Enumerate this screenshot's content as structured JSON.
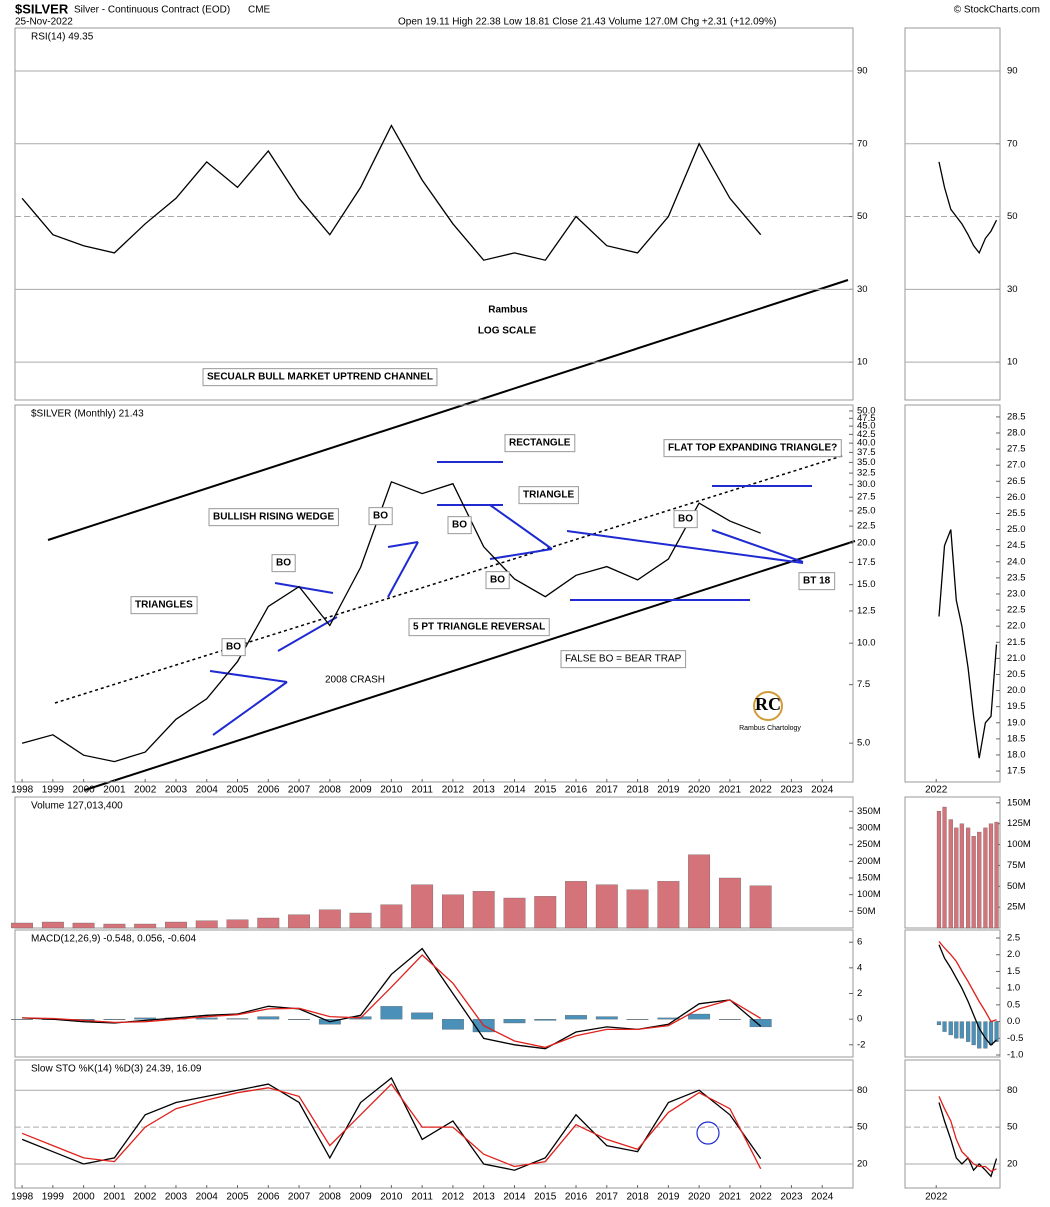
{
  "header": {
    "symbol": "$SILVER",
    "name": "Silver - Continuous Contract (EOD)",
    "exchange": "CME",
    "date": "25-Nov-2022",
    "quote": "Open 19.11 High 22.38 Low 18.81 Close 21.43 Volume 127.0M Chg +2.31 (+12.09%)",
    "credit": "© StockCharts.com"
  },
  "chart_data": [
    {
      "type": "line",
      "label": "RSI(14) 49.35",
      "x": [
        1998,
        1999,
        2000,
        2001,
        2002,
        2003,
        2004,
        2005,
        2006,
        2007,
        2008,
        2009,
        2010,
        2011,
        2012,
        2013,
        2014,
        2015,
        2016,
        2017,
        2018,
        2019,
        2020,
        2021,
        2022
      ],
      "xlim": [
        1997.77,
        2025.0
      ],
      "ylim": [
        -0.4,
        101.8
      ],
      "yticks": [
        10,
        30,
        50,
        70,
        90
      ],
      "grid": true,
      "series": [
        {
          "type": "line",
          "color": "#000000",
          "values": [
            55,
            45,
            42,
            40,
            48,
            55,
            65,
            58,
            68,
            55,
            45,
            58,
            75,
            60,
            48,
            38,
            40,
            38,
            50,
            42,
            40,
            50,
            70,
            55,
            45
          ]
        }
      ]
    },
    {
      "type": "line",
      "label": "$SILVER (Monthly) 21.43",
      "log_scale": true,
      "x": [
        1998,
        1999,
        2000,
        2001,
        2002,
        2003,
        2004,
        2005,
        2006,
        2007,
        2008,
        2009,
        2010,
        2011,
        2012,
        2013,
        2014,
        2015,
        2016,
        2017,
        2018,
        2019,
        2020,
        2021,
        2022
      ],
      "xlim": [
        1997.77,
        2025.0
      ],
      "ylim": [
        3.82,
        52.1
      ],
      "yticks": [
        {
          "value": 5,
          "label": "5.0"
        },
        7.5,
        {
          "value": 10,
          "label": "10.0"
        },
        12.5,
        {
          "value": 15,
          "label": "15.0"
        },
        17.5,
        {
          "value": 20,
          "label": "20.0"
        },
        22.5,
        {
          "value": 25,
          "label": "25.0"
        },
        27.5,
        {
          "value": 30,
          "label": "30.0"
        },
        32.5,
        {
          "value": 35,
          "label": "35.0"
        },
        37.5,
        {
          "value": 40,
          "label": "40.0"
        },
        42.5,
        {
          "value": 45,
          "label": "45.0"
        },
        47.5,
        {
          "value": 50,
          "label": "50.0"
        }
      ],
      "xticks": [
        1998,
        1999,
        2000,
        2001,
        2002,
        2003,
        2004,
        2005,
        2006,
        2007,
        2008,
        2009,
        2010,
        2011,
        2012,
        2013,
        2014,
        2015,
        2016,
        2017,
        2018,
        2019,
        2020,
        2021,
        2022,
        2023,
        2024
      ],
      "series": [
        {
          "type": "line",
          "color": "#000000",
          "values": [
            5.0,
            5.3,
            4.6,
            4.4,
            4.7,
            5.9,
            6.8,
            8.8,
            12.9,
            14.8,
            11.3,
            16.9,
            30.6,
            28.2,
            30.2,
            19.5,
            15.6,
            13.8,
            16.0,
            17.0,
            15.5,
            17.9,
            26.4,
            23.3,
            21.43
          ]
        }
      ],
      "annotations": [
        "Rambus",
        "LOG SCALE",
        "SECUALR BULL MARKET UPTREND CHANNEL",
        "BULLISH RISING WEDGE",
        "BO",
        "BO",
        "TRIANGLES",
        "BO",
        "2008 CRASH",
        "RECTANGLE",
        "TRIANGLE",
        "BO",
        "BO",
        "5 PT TRIANGLE REVERSAL",
        "FALSE BO = BEAR TRAP",
        "FLAT TOP EXPANDING TRIANGLE?",
        "BO",
        "BT 18",
        "RC",
        "Rambus Chartology"
      ]
    },
    {
      "type": "bar",
      "label": "Volume 127,013,400",
      "x": [
        1998,
        1999,
        2000,
        2001,
        2002,
        2003,
        2004,
        2005,
        2006,
        2007,
        2008,
        2009,
        2010,
        2011,
        2012,
        2013,
        2014,
        2015,
        2016,
        2017,
        2018,
        2019,
        2020,
        2021,
        2022
      ],
      "xlim": [
        1997.77,
        2025.0
      ],
      "ylim": [
        0,
        393
      ],
      "yticks": [
        {
          "value": 50,
          "label": "50M"
        },
        {
          "value": 100,
          "label": "100M"
        },
        {
          "value": 150,
          "label": "150M"
        },
        {
          "value": 200,
          "label": "200M"
        },
        {
          "value": 250,
          "label": "250M"
        },
        {
          "value": 300,
          "label": "300M"
        },
        {
          "value": 350,
          "label": "350M"
        }
      ],
      "series": [
        {
          "type": "bar",
          "color": "#d4737a",
          "values": [
            15,
            18,
            15,
            12,
            12,
            18,
            22,
            25,
            30,
            40,
            55,
            45,
            70,
            130,
            100,
            110,
            90,
            95,
            140,
            130,
            115,
            140,
            220,
            150,
            127
          ]
        }
      ]
    },
    {
      "type": "line",
      "label": "MACD(12,26,9) -0.548, 0.056, -0.604",
      "x": [
        1998,
        1999,
        2000,
        2001,
        2002,
        2003,
        2004,
        2005,
        2006,
        2007,
        2008,
        2009,
        2010,
        2011,
        2012,
        2013,
        2014,
        2015,
        2016,
        2017,
        2018,
        2019,
        2020,
        2021,
        2022
      ],
      "xlim": [
        1997.77,
        2025.0
      ],
      "ylim": [
        -2.95,
        6.95
      ],
      "yticks": [
        -2,
        0,
        2,
        4,
        6
      ],
      "series": [
        {
          "type": "bar",
          "color": "#4a90b8",
          "values": [
            0,
            -0.05,
            -0.1,
            -0.05,
            0.1,
            0.1,
            0.1,
            0.05,
            0.2,
            -0.05,
            -0.4,
            0.2,
            1.0,
            0.5,
            -0.8,
            -1.0,
            -0.3,
            -0.1,
            0.3,
            0.2,
            0,
            0.1,
            0.4,
            0,
            -0.604
          ]
        },
        {
          "type": "line",
          "color": "#000000",
          "values": [
            0.1,
            0,
            -0.2,
            -0.3,
            -0.1,
            0.1,
            0.3,
            0.4,
            1.0,
            0.8,
            -0.2,
            0.3,
            3.5,
            5.5,
            2.0,
            -1.5,
            -2.0,
            -2.3,
            -1.0,
            -0.6,
            -0.8,
            -0.4,
            1.2,
            1.5,
            -0.548
          ]
        },
        {
          "type": "line",
          "color": "#e0201b",
          "values": [
            0.1,
            0.05,
            -0.1,
            -0.25,
            -0.2,
            0,
            0.2,
            0.35,
            0.8,
            0.85,
            0.2,
            0.1,
            2.5,
            5.0,
            2.8,
            -0.5,
            -1.7,
            -2.2,
            -1.3,
            -0.8,
            -0.8,
            -0.5,
            0.8,
            1.5,
            0.056
          ]
        }
      ]
    },
    {
      "type": "line",
      "label": "Slow STO %K(14) %D(3) 24.39, 16.09",
      "x": [
        1998,
        1999,
        2000,
        2001,
        2002,
        2003,
        2004,
        2005,
        2006,
        2007,
        2008,
        2009,
        2010,
        2011,
        2012,
        2013,
        2014,
        2015,
        2016,
        2017,
        2018,
        2019,
        2020,
        2021,
        2022
      ],
      "xlim": [
        1997.77,
        2025.0
      ],
      "ylim": [
        0.5,
        104.6
      ],
      "yticks": [
        20,
        50,
        80
      ],
      "grid": true,
      "xticks": [
        1998,
        1999,
        2000,
        2001,
        2002,
        2003,
        2004,
        2005,
        2006,
        2007,
        2008,
        2009,
        2010,
        2011,
        2012,
        2013,
        2014,
        2015,
        2016,
        2017,
        2018,
        2019,
        2020,
        2021,
        2022,
        2023,
        2024
      ],
      "series": [
        {
          "type": "line",
          "color": "#000000",
          "values": [
            40,
            30,
            20,
            25,
            60,
            70,
            75,
            80,
            85,
            70,
            25,
            70,
            90,
            40,
            55,
            20,
            15,
            25,
            60,
            35,
            30,
            70,
            80,
            60,
            24.39
          ]
        },
        {
          "type": "line",
          "color": "#e0201b",
          "values": [
            45,
            35,
            25,
            22,
            50,
            65,
            72,
            78,
            82,
            75,
            35,
            60,
            85,
            50,
            50,
            28,
            18,
            22,
            52,
            40,
            32,
            62,
            78,
            65,
            16.09
          ]
        }
      ]
    },
    {
      "type": "line",
      "x": [
        2022.04,
        2022.12,
        2022.21,
        2022.29,
        2022.37,
        2022.46,
        2022.54,
        2022.62,
        2022.71,
        2022.79,
        2022.87
      ],
      "xlim": [
        2021.55,
        2022.92
      ],
      "ylim": [
        -0.4,
        101.8
      ],
      "yticks": [
        10,
        30,
        50,
        70,
        90
      ],
      "grid": true,
      "series": [
        {
          "type": "line",
          "color": "#000000",
          "values": [
            65,
            58,
            52,
            50,
            48,
            45,
            42,
            40,
            44,
            46,
            49
          ]
        }
      ]
    },
    {
      "type": "line",
      "x": [
        2022.04,
        2022.12,
        2022.21,
        2022.29,
        2022.37,
        2022.46,
        2022.54,
        2022.62,
        2022.71,
        2022.79,
        2022.87
      ],
      "xlim": [
        2021.55,
        2022.92
      ],
      "ylim": [
        17.16,
        28.87
      ],
      "xticks": [
        2022
      ],
      "yticks": [
        17.5,
        {
          "value": 18,
          "label": "18.0"
        },
        18.5,
        {
          "value": 19,
          "label": "19.0"
        },
        19.5,
        {
          "value": 20,
          "label": "20.0"
        },
        20.5,
        {
          "value": 21,
          "label": "21.0"
        },
        21.5,
        {
          "value": 22,
          "label": "22.0"
        },
        22.5,
        {
          "value": 23,
          "label": "23.0"
        },
        23.5,
        {
          "value": 24,
          "label": "24.0"
        },
        24.5,
        {
          "value": 25,
          "label": "25.0"
        },
        25.5,
        {
          "value": 26,
          "label": "26.0"
        },
        26.5,
        {
          "value": 27,
          "label": "27.0"
        },
        27.5,
        {
          "value": 28,
          "label": "28.0"
        },
        28.5
      ],
      "series": [
        {
          "type": "line",
          "color": "#000000",
          "values": [
            22.3,
            24.5,
            25.0,
            22.8,
            22.0,
            20.7,
            19.2,
            17.9,
            19.0,
            19.2,
            21.43
          ]
        }
      ]
    },
    {
      "type": "bar",
      "x": [
        2022.04,
        2022.12,
        2022.21,
        2022.29,
        2022.37,
        2022.46,
        2022.54,
        2022.62,
        2022.71,
        2022.79,
        2022.87
      ],
      "xlim": [
        2021.55,
        2022.92
      ],
      "ylim": [
        0,
        157
      ],
      "yticks": [
        {
          "value": 25,
          "label": "25M"
        },
        {
          "value": 50,
          "label": "50M"
        },
        {
          "value": 75,
          "label": "75M"
        },
        {
          "value": 100,
          "label": "100M"
        },
        {
          "value": 125,
          "label": "125M"
        },
        {
          "value": 150,
          "label": "150M"
        }
      ],
      "series": [
        {
          "type": "bar",
          "color": "#d4737a",
          "values": [
            140,
            145,
            130,
            120,
            125,
            120,
            110,
            115,
            120,
            125,
            127
          ]
        }
      ]
    },
    {
      "type": "line",
      "x": [
        2022.04,
        2022.12,
        2022.21,
        2022.29,
        2022.37,
        2022.46,
        2022.54,
        2022.62,
        2022.71,
        2022.79,
        2022.87
      ],
      "xlim": [
        2021.55,
        2022.92
      ],
      "ylim": [
        -1.06,
        2.74
      ],
      "yticks": [
        {
          "value": -1,
          "label": "-1.0"
        },
        -0.5,
        {
          "value": 0,
          "label": "0.0"
        },
        0.5,
        {
          "value": 1,
          "label": "1.0"
        },
        1.5,
        {
          "value": 2,
          "label": "2.0"
        },
        2.5
      ],
      "series": [
        {
          "type": "bar",
          "color": "#4a90b8",
          "values": [
            -0.1,
            -0.3,
            -0.4,
            -0.5,
            -0.5,
            -0.6,
            -0.7,
            -0.8,
            -0.8,
            -0.7,
            -0.604
          ]
        },
        {
          "type": "line",
          "color": "#000000",
          "values": [
            2.3,
            1.9,
            1.6,
            1.3,
            1.0,
            0.6,
            0.2,
            -0.2,
            -0.5,
            -0.7,
            -0.548
          ]
        },
        {
          "type": "line",
          "color": "#e0201b",
          "values": [
            2.4,
            2.2,
            2.0,
            1.8,
            1.5,
            1.2,
            0.9,
            0.6,
            0.3,
            0.0,
            0.056
          ]
        }
      ]
    },
    {
      "type": "line",
      "x": [
        2022.04,
        2022.12,
        2022.21,
        2022.29,
        2022.37,
        2022.46,
        2022.54,
        2022.62,
        2022.71,
        2022.79,
        2022.87
      ],
      "xlim": [
        2021.55,
        2022.92
      ],
      "ylim": [
        0.5,
        104.6
      ],
      "yticks": [
        20,
        50,
        80
      ],
      "grid": true,
      "xticks": [
        2022
      ],
      "series": [
        {
          "type": "line",
          "color": "#000000",
          "values": [
            70,
            55,
            40,
            25,
            20,
            25,
            15,
            20,
            15,
            10,
            24.39
          ]
        },
        {
          "type": "line",
          "color": "#e0201b",
          "values": [
            75,
            65,
            55,
            40,
            30,
            25,
            20,
            18,
            18,
            14,
            16.09
          ]
        }
      ]
    }
  ]
}
